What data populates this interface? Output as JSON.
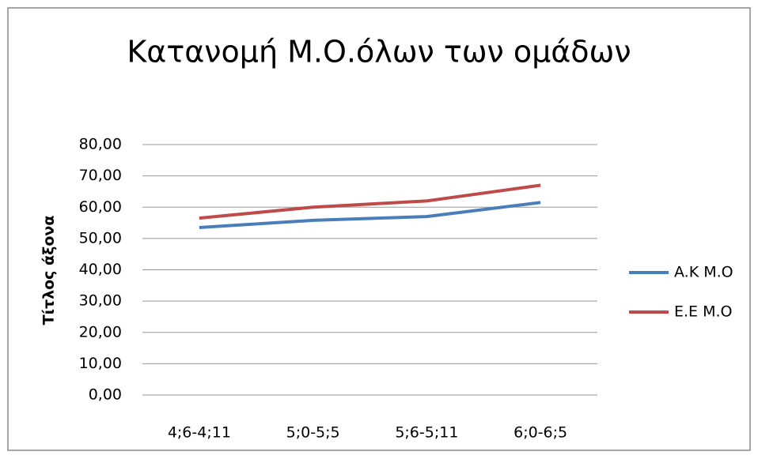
{
  "chart_data": {
    "type": "line",
    "title": "Κατανομή Μ.Ο.όλων των ομάδων",
    "y_label": "Τίτλος άξονα",
    "categories": [
      "4;6-4;11",
      "5;0-5;5",
      "5;6-5;11",
      "6;0-6;5"
    ],
    "series": [
      {
        "name": "A.K M.O",
        "color": "#4a7ebb",
        "values": [
          53.5,
          55.8,
          57,
          61.5
        ]
      },
      {
        "name": "E.E M.O",
        "color": "#be4b48",
        "values": [
          56.5,
          60,
          62,
          67
        ]
      }
    ],
    "ylim": [
      0,
      80
    ],
    "yticks": [
      {
        "value": 0,
        "label": "0,00"
      },
      {
        "value": 10,
        "label": "10,00"
      },
      {
        "value": 20,
        "label": "20,00"
      },
      {
        "value": 30,
        "label": "30,00"
      },
      {
        "value": 40,
        "label": "40,00"
      },
      {
        "value": 50,
        "label": "50,00"
      },
      {
        "value": 60,
        "label": "60,00"
      },
      {
        "value": 70,
        "label": "70,00"
      },
      {
        "value": 80,
        "label": "80,00"
      }
    ],
    "grid": true,
    "legend": "right"
  }
}
